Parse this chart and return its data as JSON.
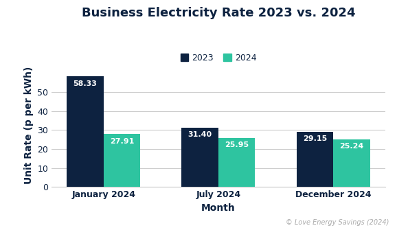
{
  "title": "Business Electricity Rate 2023 vs. 2024",
  "xlabel": "Month",
  "ylabel": "Unit Rate (p per kWh)",
  "categories": [
    "January 2024",
    "July 2024",
    "December 2024"
  ],
  "series": [
    {
      "label": "2023",
      "values": [
        58.33,
        31.4,
        29.15
      ],
      "color": "#0d2240"
    },
    {
      "label": "2024",
      "values": [
        27.91,
        25.95,
        25.24
      ],
      "color": "#2ec4a0"
    }
  ],
  "ylim": [
    0,
    65
  ],
  "yticks": [
    0,
    10,
    20,
    30,
    40,
    50
  ],
  "bar_width": 0.32,
  "title_fontsize": 13,
  "axis_label_fontsize": 10,
  "tick_fontsize": 9,
  "value_label_fontsize": 8,
  "legend_fontsize": 9,
  "background_color": "#ffffff",
  "grid_color": "#cccccc",
  "axis_label_color": "#0d2240",
  "tick_label_color": "#0d2240",
  "title_color": "#0d2240",
  "caption": "© Love Energy Savings (2024)",
  "caption_color": "#aaaaaa",
  "caption_fontsize": 7
}
